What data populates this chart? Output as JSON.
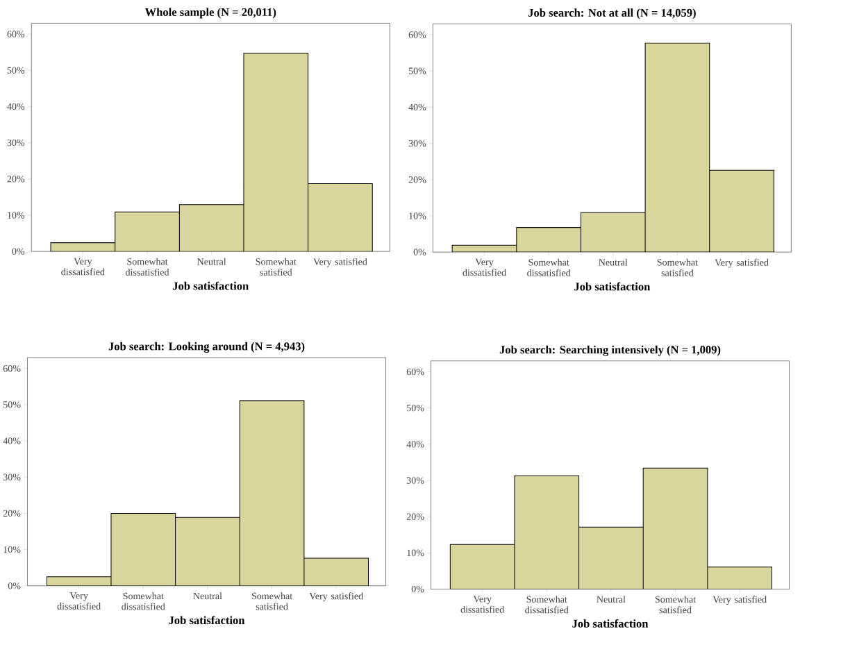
{
  "chart_data": [
    {
      "type": "bar",
      "title": "Whole sample (N = 20,011)",
      "categories": [
        "Very dissatisfied",
        "Somewhat dissatisfied",
        "Neutral",
        "Somewhat satisfied",
        "Very satisfied"
      ],
      "values": [
        2.4,
        10.9,
        12.9,
        54.7,
        18.7
      ],
      "color": "#d9d59d",
      "xlabel": "Job satisfaction",
      "ylim": [
        0,
        63
      ],
      "yticks": [
        {
          "value": 0,
          "label": "0%"
        },
        {
          "value": 10,
          "label": "10%"
        },
        {
          "value": 20,
          "label": "20%"
        },
        {
          "value": 30,
          "label": "30%"
        },
        {
          "value": 40,
          "label": "40%"
        },
        {
          "value": 50,
          "label": "50%"
        },
        {
          "value": 60,
          "label": "60%"
        }
      ]
    },
    {
      "type": "bar",
      "title": "Job search: Not at all (N = 14,059)",
      "categories": [
        "Very dissatisfied",
        "Somewhat dissatisfied",
        "Neutral",
        "Somewhat satisfied",
        "Very satisfied"
      ],
      "values": [
        1.9,
        6.8,
        10.9,
        57.7,
        22.6
      ],
      "color": "#d9d59d",
      "xlabel": "Job satisfaction",
      "ylim": [
        0,
        63
      ],
      "yticks": [
        {
          "value": 0,
          "label": "0%"
        },
        {
          "value": 10,
          "label": "10%"
        },
        {
          "value": 20,
          "label": "20%"
        },
        {
          "value": 30,
          "label": "30%"
        },
        {
          "value": 40,
          "label": "40%"
        },
        {
          "value": 50,
          "label": "50%"
        },
        {
          "value": 60,
          "label": "60%"
        }
      ]
    },
    {
      "type": "bar",
      "title": "Job search: Looking around (N = 4,943)",
      "categories": [
        "Very dissatisfied",
        "Somewhat dissatisfied",
        "Neutral",
        "Somewhat satisfied",
        "Very satisfied"
      ],
      "values": [
        2.5,
        20.0,
        18.9,
        51.1,
        7.6
      ],
      "color": "#d9d59d",
      "xlabel": "Job satisfaction",
      "ylim": [
        0,
        63
      ],
      "yticks": [
        {
          "value": 0,
          "label": "0%"
        },
        {
          "value": 10,
          "label": "10%"
        },
        {
          "value": 20,
          "label": "20%"
        },
        {
          "value": 30,
          "label": "30%"
        },
        {
          "value": 40,
          "label": "40%"
        },
        {
          "value": 50,
          "label": "50%"
        },
        {
          "value": 60,
          "label": "60%"
        }
      ]
    },
    {
      "type": "bar",
      "title": "Job search: Searching intensively (N = 1,009)",
      "categories": [
        "Very dissatisfied",
        "Somewhat dissatisfied",
        "Neutral",
        "Somewhat satisfied",
        "Very satisfied"
      ],
      "values": [
        12.3,
        31.3,
        17.1,
        33.4,
        6.1
      ],
      "color": "#d9d59d",
      "xlabel": "Job satisfaction",
      "ylim": [
        0,
        63
      ],
      "yticks": [
        {
          "value": 0,
          "label": "0%"
        },
        {
          "value": 10,
          "label": "10%"
        },
        {
          "value": 20,
          "label": "20%"
        },
        {
          "value": 30,
          "label": "30%"
        },
        {
          "value": 40,
          "label": "40%"
        },
        {
          "value": 50,
          "label": "50%"
        },
        {
          "value": 60,
          "label": "60%"
        }
      ]
    }
  ]
}
